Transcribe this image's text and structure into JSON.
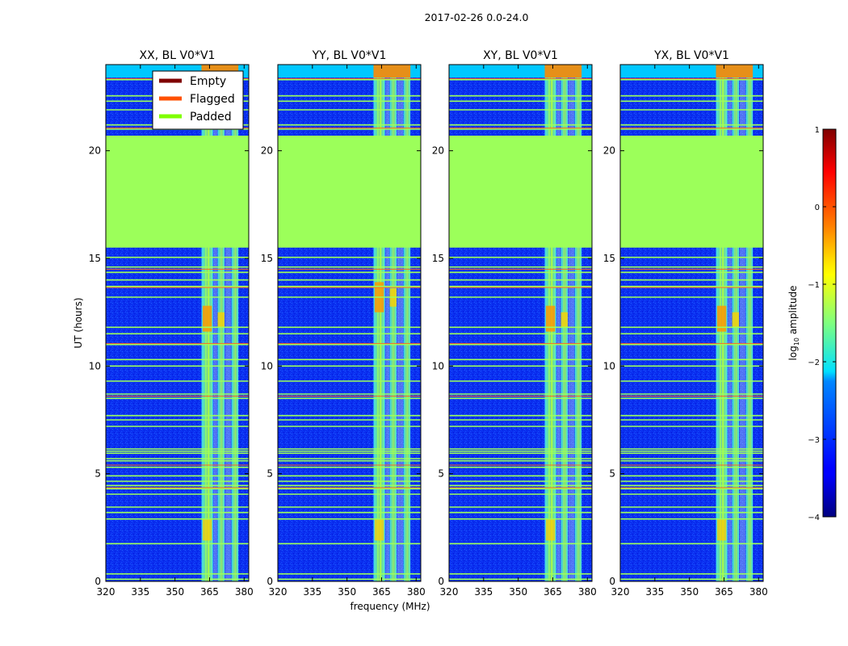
{
  "suptitle": "2017-02-26 0.0-24.0",
  "chart_data": {
    "type": "heatmap",
    "suptitle": "2017-02-26 0.0-24.0",
    "xlabel": "frequency (MHz)",
    "ylabel": "UT (hours)",
    "xlim": [
      320,
      382
    ],
    "ylim": [
      0,
      24
    ],
    "xticks": [
      320,
      335,
      350,
      365,
      380
    ],
    "yticks": [
      0,
      5,
      10,
      15,
      20
    ],
    "panels": [
      {
        "title": "XX, BL V0*V1",
        "hotspot": [
          11.6,
          12.8
        ]
      },
      {
        "title": "YY, BL V0*V1",
        "hotspot": [
          12.5,
          13.9
        ]
      },
      {
        "title": "XY, BL V0*V1",
        "hotspot": [
          11.6,
          12.8
        ]
      },
      {
        "title": "YX, BL V0*V1",
        "hotspot": [
          11.6,
          12.8
        ]
      }
    ],
    "band_columns_mhz": [
      [
        361.5,
        366.5
      ],
      [
        368.5,
        371.5
      ],
      [
        374.5,
        377.5
      ]
    ],
    "padded_block_hours": [
      15.5,
      20.7
    ],
    "gap_lines_hours": [
      0.1,
      0.35,
      1.75,
      2.9,
      3.2,
      3.45,
      4.05,
      4.3,
      4.45,
      4.65,
      4.9,
      5.3,
      5.6,
      5.7,
      5.95,
      6.05,
      6.15,
      7.2,
      7.5,
      7.7,
      8.5,
      8.7,
      9.3,
      10.0,
      10.3,
      11.0,
      11.5,
      11.8,
      13.2,
      13.7,
      14.0,
      14.35,
      14.6,
      15.05,
      21.0,
      21.2,
      21.9,
      22.3,
      22.55,
      23.3
    ],
    "flagged_lines_hours": [
      4.35,
      5.4,
      8.6,
      11.05,
      13.65,
      14.5,
      21.05,
      23.35
    ],
    "legend": {
      "location": "upper-right",
      "entries": [
        {
          "label": "Empty",
          "color": "#7f0000"
        },
        {
          "label": "Flagged",
          "color": "#ff5000"
        },
        {
          "label": "Padded",
          "color": "#7fff00"
        }
      ]
    },
    "colorbar": {
      "label_prefix": "log",
      "label_sub": "10",
      "label_suffix": " amplitude",
      "range": [
        -4,
        1
      ],
      "ticks": [
        "1",
        "0",
        "−1",
        "−2",
        "−3",
        "−4"
      ]
    }
  }
}
